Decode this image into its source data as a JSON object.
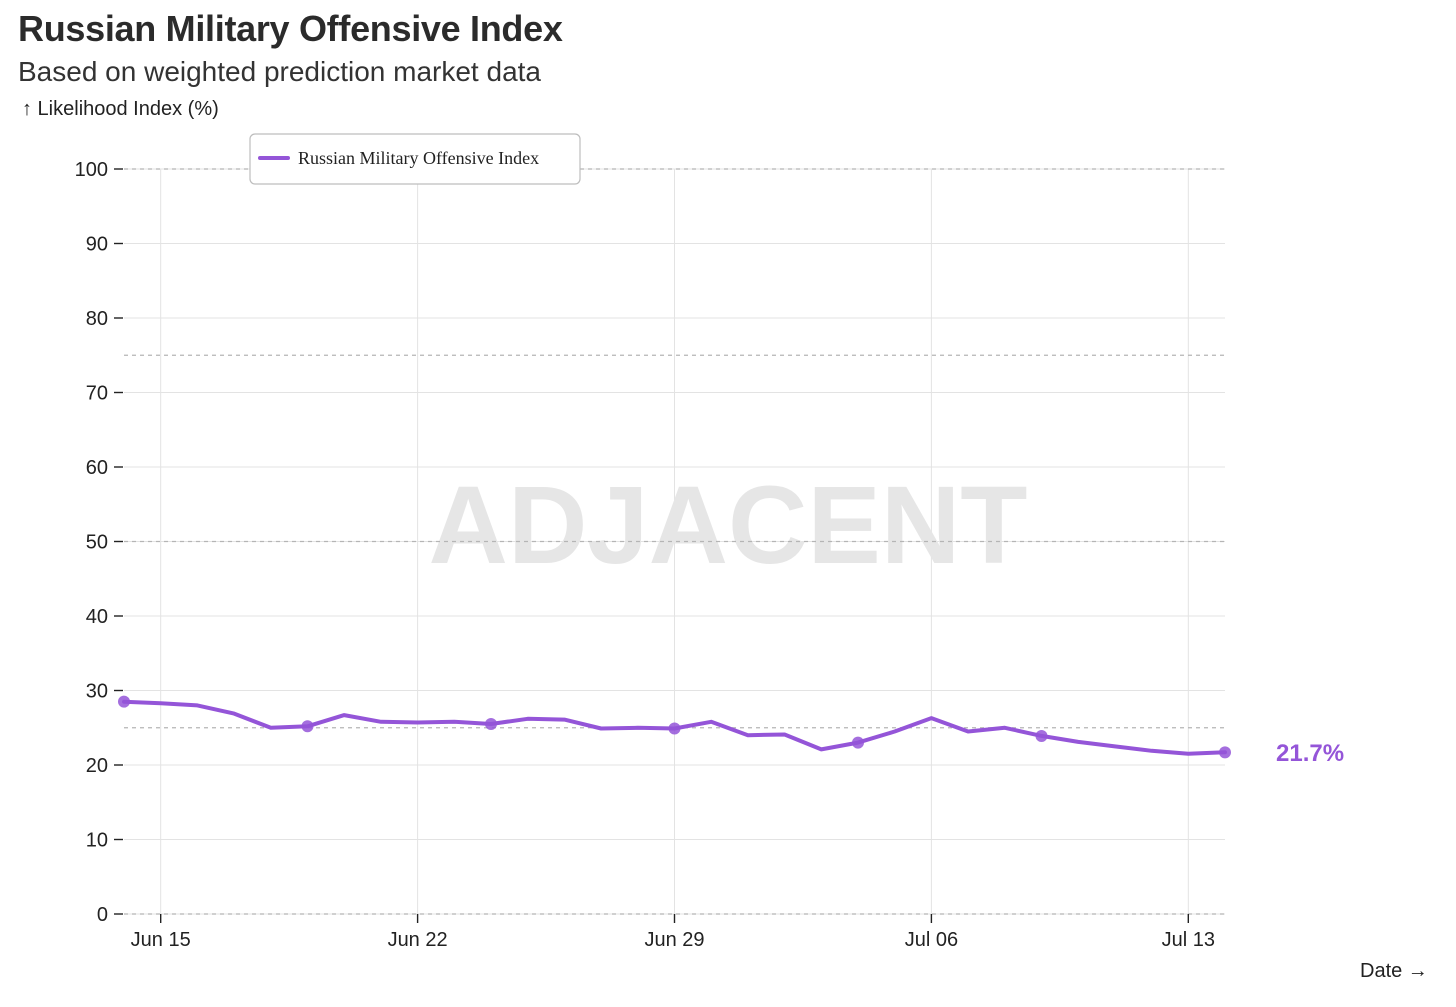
{
  "chart_data": {
    "type": "line",
    "title": "Russian Military Offensive Index",
    "subtitle": "Based on weighted prediction market data",
    "ylabel": "↑ Likelihood Index (%)",
    "xlabel": "Date →",
    "watermark": "ADJACENT",
    "ylim": [
      0,
      100
    ],
    "yticks": [
      0,
      10,
      20,
      30,
      40,
      50,
      60,
      70,
      80,
      90,
      100
    ],
    "xticks": [
      {
        "label": "Jun 15",
        "day": 1
      },
      {
        "label": "Jun 22",
        "day": 8
      },
      {
        "label": "Jun 29",
        "day": 15
      },
      {
        "label": "Jul 06",
        "day": 22
      },
      {
        "label": "Jul 13",
        "day": 29
      }
    ],
    "xlim_days": [
      0,
      30
    ],
    "reference_lines": [
      25,
      50,
      75,
      100
    ],
    "color": "#9455d8",
    "end_label": "21.7%",
    "series": [
      {
        "name": "Russian Military Offensive Index",
        "x": [
          0,
          1,
          2,
          3,
          4,
          5,
          6,
          7,
          8,
          9,
          10,
          11,
          12,
          13,
          14,
          15,
          16,
          17,
          18,
          19,
          20,
          21,
          22,
          23,
          24,
          25,
          26,
          27,
          28,
          29,
          30
        ],
        "values": [
          28.5,
          28.3,
          28.0,
          26.9,
          25.0,
          25.2,
          26.7,
          25.8,
          25.7,
          25.8,
          25.5,
          26.2,
          26.1,
          24.9,
          25.0,
          24.9,
          25.8,
          24.0,
          24.1,
          22.1,
          23.0,
          24.5,
          26.3,
          24.5,
          25.0,
          23.9,
          23.1,
          22.5,
          21.9,
          21.5,
          21.7
        ],
        "markers": [
          0,
          5,
          10,
          15,
          20,
          25,
          30
        ]
      }
    ]
  }
}
